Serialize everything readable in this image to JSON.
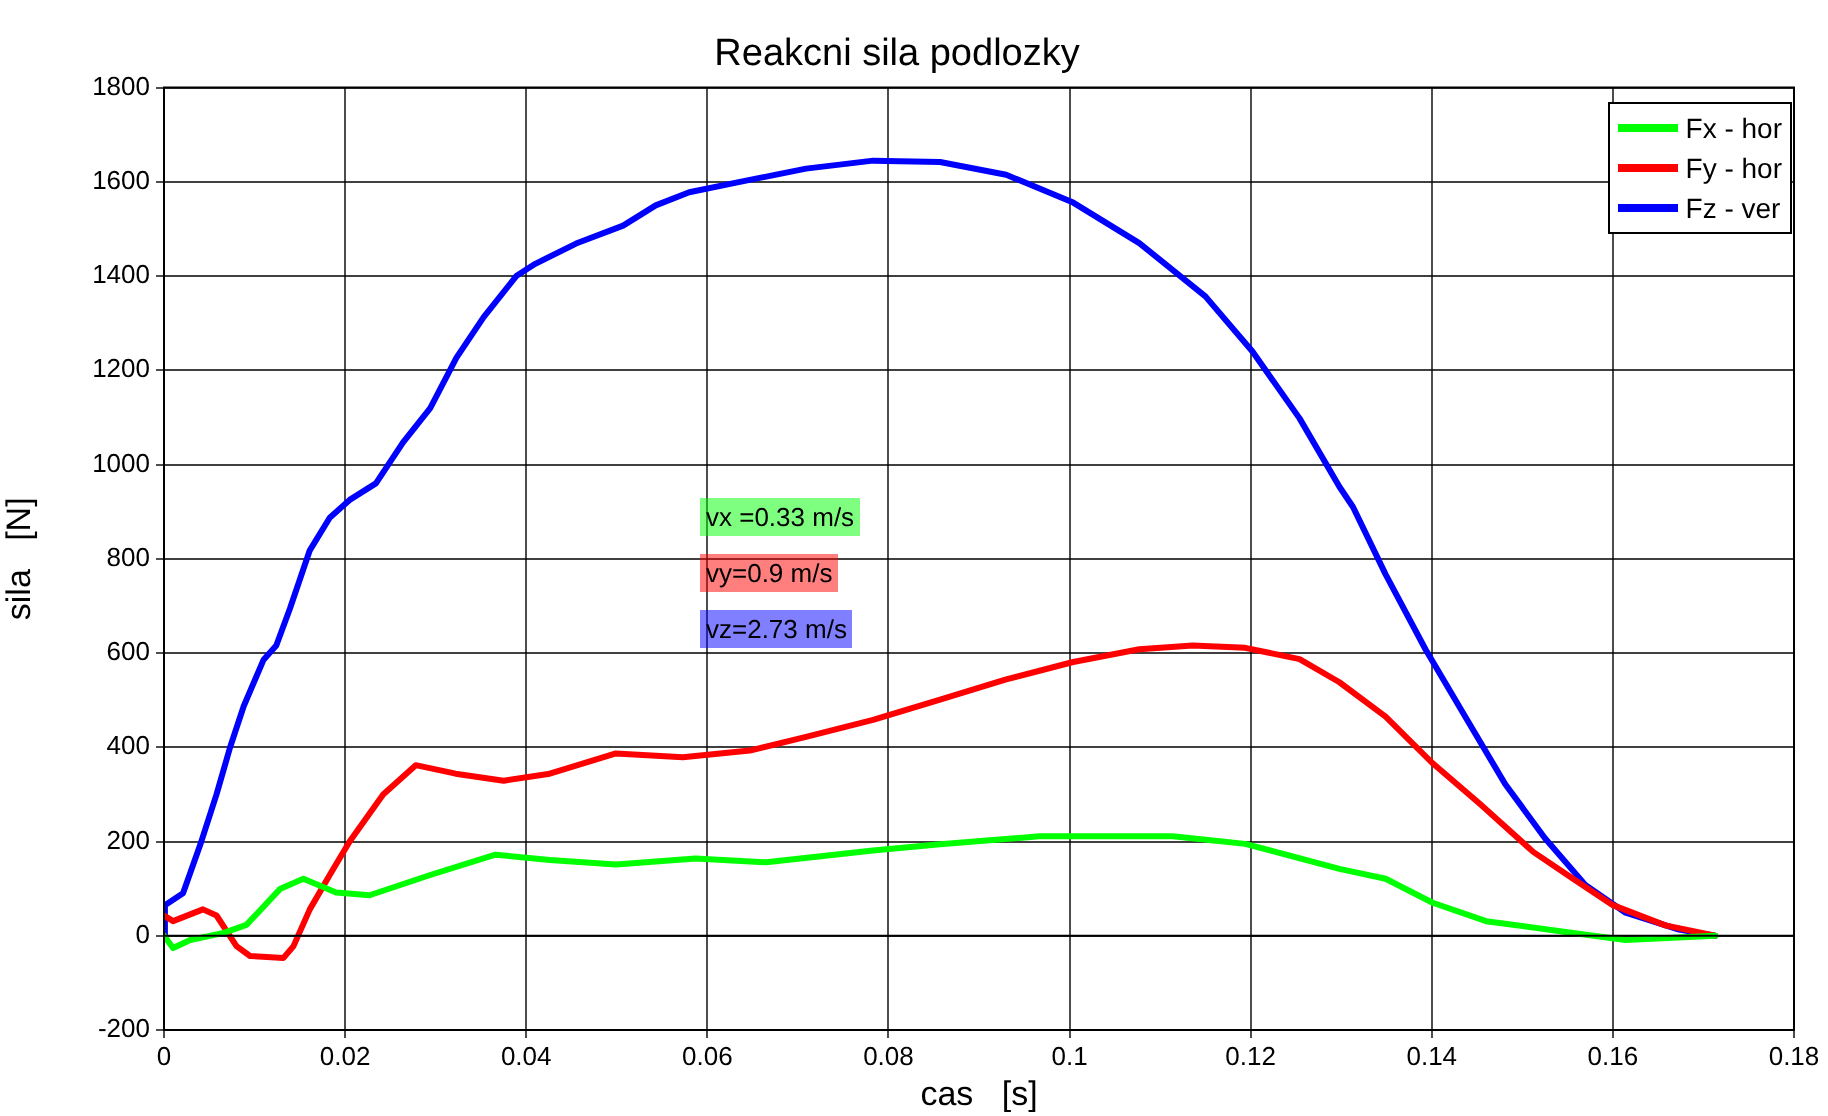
{
  "chart_data": {
    "type": "line",
    "title": "Reakcni sila podlozky",
    "xlabel": "cas   [s]",
    "ylabel": "sila   [N]",
    "xlim": [
      0,
      0.18
    ],
    "xticks": [
      0,
      0.02,
      0.04,
      0.06,
      0.08,
      0.1,
      0.12,
      0.14,
      0.16,
      0.18
    ],
    "ylim": [
      -200,
      1800
    ],
    "yticks": [
      -200,
      0,
      200,
      400,
      600,
      800,
      1000,
      1200,
      1400,
      1600,
      1800
    ],
    "grid": true,
    "legend": "top right",
    "line_style": "solid",
    "marker": "none",
    "ref_lines": [
      {
        "axis": "y",
        "value": 0,
        "color": "#000000"
      }
    ],
    "annotations": [
      "vx =0.33 m/s",
      "vy=0.9 m/s",
      "vz=2.73 m/s"
    ],
    "series": [
      {
        "name": "Fx - hor",
        "color": "#00ff00",
        "x": [
          0,
          0.001,
          0.0029,
          0.0066,
          0.0091,
          0.0128,
          0.0154,
          0.019,
          0.0227,
          0.0294,
          0.0366,
          0.0426,
          0.0499,
          0.0587,
          0.0665,
          0.0783,
          0.0857,
          0.0967,
          0.1114,
          0.1194,
          0.1298,
          0.1349,
          0.1401,
          0.146,
          0.1556,
          0.1614,
          0.1713
        ],
        "values": [
          0,
          -26,
          -9,
          6,
          23,
          99,
          121,
          92,
          86,
          129,
          172,
          161,
          151,
          164,
          156,
          181,
          194,
          211,
          211,
          195,
          142,
          121,
          70,
          31,
          6,
          -9,
          0
        ]
      },
      {
        "name": "Fy - hor",
        "color": "#ff0000",
        "x": [
          0,
          0.001,
          0.0043,
          0.0058,
          0.008,
          0.0095,
          0.0132,
          0.0143,
          0.0161,
          0.0183,
          0.0205,
          0.0242,
          0.0278,
          0.0322,
          0.0375,
          0.0426,
          0.0499,
          0.0573,
          0.0647,
          0.0709,
          0.0783,
          0.0857,
          0.093,
          0.1004,
          0.1077,
          0.1136,
          0.1194,
          0.1254,
          0.1298,
          0.1349,
          0.1401,
          0.1453,
          0.1512,
          0.1556,
          0.16,
          0.1658,
          0.1713
        ],
        "values": [
          43,
          31,
          56,
          43,
          -22,
          -43,
          -47,
          -22,
          56,
          129,
          200,
          300,
          362,
          344,
          329,
          344,
          387,
          379,
          393,
          422,
          458,
          501,
          544,
          581,
          608,
          616,
          611,
          587,
          538,
          465,
          366,
          280,
          178,
          121,
          65,
          22,
          0
        ]
      },
      {
        "name": "Fz - ver",
        "color": "#0000ff",
        "x": [
          0,
          0.0001,
          0.0021,
          0.004,
          0.0058,
          0.0073,
          0.0088,
          0.011,
          0.0124,
          0.0139,
          0.0161,
          0.0183,
          0.0205,
          0.0234,
          0.0264,
          0.0294,
          0.0323,
          0.0353,
          0.0389,
          0.041,
          0.0455,
          0.0507,
          0.0543,
          0.058,
          0.0636,
          0.0709,
          0.0783,
          0.0857,
          0.093,
          0.1004,
          0.1077,
          0.115,
          0.1202,
          0.1254,
          0.1298,
          0.1313,
          0.1349,
          0.1393,
          0.1437,
          0.1481,
          0.1525,
          0.157,
          0.1614,
          0.1673,
          0.1713
        ],
        "values": [
          0,
          65,
          90,
          193,
          300,
          400,
          487,
          586,
          616,
          694,
          818,
          887,
          925,
          960,
          1047,
          1120,
          1227,
          1313,
          1400,
          1426,
          1469,
          1507,
          1550,
          1578,
          1600,
          1628,
          1645,
          1642,
          1615,
          1556,
          1470,
          1357,
          1240,
          1098,
          953,
          910,
          767,
          608,
          465,
          322,
          207,
          107,
          49,
          13,
          0
        ]
      }
    ]
  }
}
